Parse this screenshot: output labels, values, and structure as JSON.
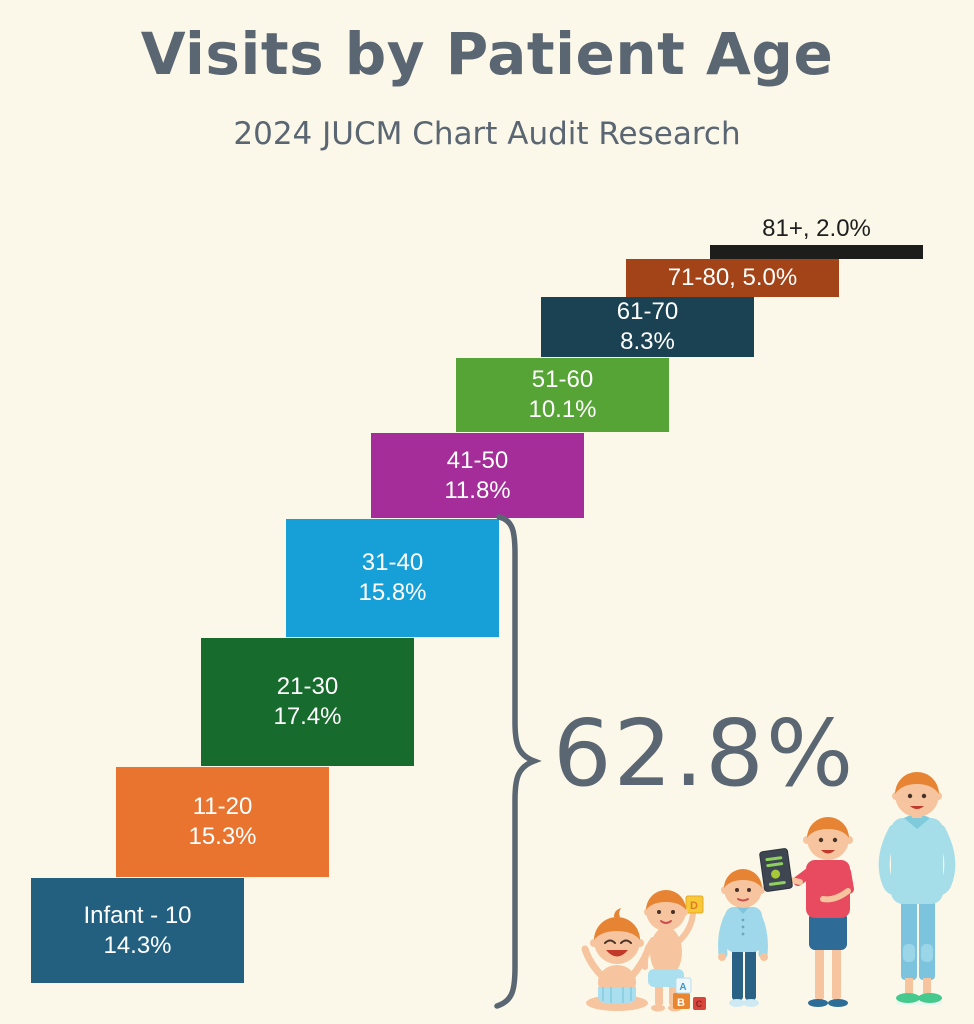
{
  "page": {
    "background": "#fbf8e9",
    "text_color": "#5b6673",
    "title": "Visits by Patient Age",
    "subtitle": "2024 JUCM Chart Audit Research"
  },
  "chart_data": {
    "type": "bar",
    "variant": "staircase-step-infographic",
    "title": "Visits by Patient Age",
    "subtitle": "2024 JUCM Chart Audit Research",
    "categories": [
      "Infant - 10",
      "11-20",
      "21-30",
      "31-40",
      "41-50",
      "51-60",
      "61-70",
      "71-80",
      "81+"
    ],
    "values": [
      14.3,
      15.3,
      17.4,
      15.8,
      11.8,
      10.1,
      8.3,
      5.0,
      2.0
    ],
    "unit": "%",
    "colors": [
      "#236080",
      "#e8742f",
      "#176b2d",
      "#17a0d8",
      "#a52d99",
      "#56a436",
      "#1b4253",
      "#a34318",
      "#1d1d1b"
    ],
    "legend": "none",
    "axes": "none",
    "annotation": {
      "label": "62.8%",
      "covers": [
        "Infant - 10",
        "11-20",
        "21-30",
        "31-40"
      ],
      "marker": "curly-brace"
    }
  },
  "bars": [
    {
      "label": "Infant - 10",
      "value_label": "14.3%",
      "color": "#236080",
      "label_position": "inside"
    },
    {
      "label": "11-20",
      "value_label": "15.3%",
      "color": "#e8742f",
      "label_position": "inside"
    },
    {
      "label": "21-30",
      "value_label": "17.4%",
      "color": "#176b2d",
      "label_position": "inside"
    },
    {
      "label": "31-40",
      "value_label": "15.8%",
      "color": "#17a0d8",
      "label_position": "inside"
    },
    {
      "label": "41-50",
      "value_label": "11.8%",
      "color": "#a52d99",
      "label_position": "inside"
    },
    {
      "label": "51-60",
      "value_label": "10.1%",
      "color": "#56a436",
      "label_position": "inside"
    },
    {
      "label": "61-70",
      "value_label": "8.3%",
      "color": "#1b4253",
      "label_position": "inside"
    },
    {
      "label": "71-80, 5.0%",
      "value_label": "",
      "color": "#a34318",
      "label_position": "inside-single"
    },
    {
      "label": "81+, 2.0%",
      "value_label": "",
      "color": "#1d1d1b",
      "label_position": "above"
    }
  ],
  "annotation": {
    "value": "62.8%"
  },
  "illustration": {
    "name": "human-growth-stages",
    "stages": [
      "baby",
      "toddler",
      "child",
      "teenager",
      "adult"
    ],
    "blocks": {
      "held": "D",
      "stack_top": "A",
      "stack_bottom": "B",
      "side": "C"
    }
  }
}
